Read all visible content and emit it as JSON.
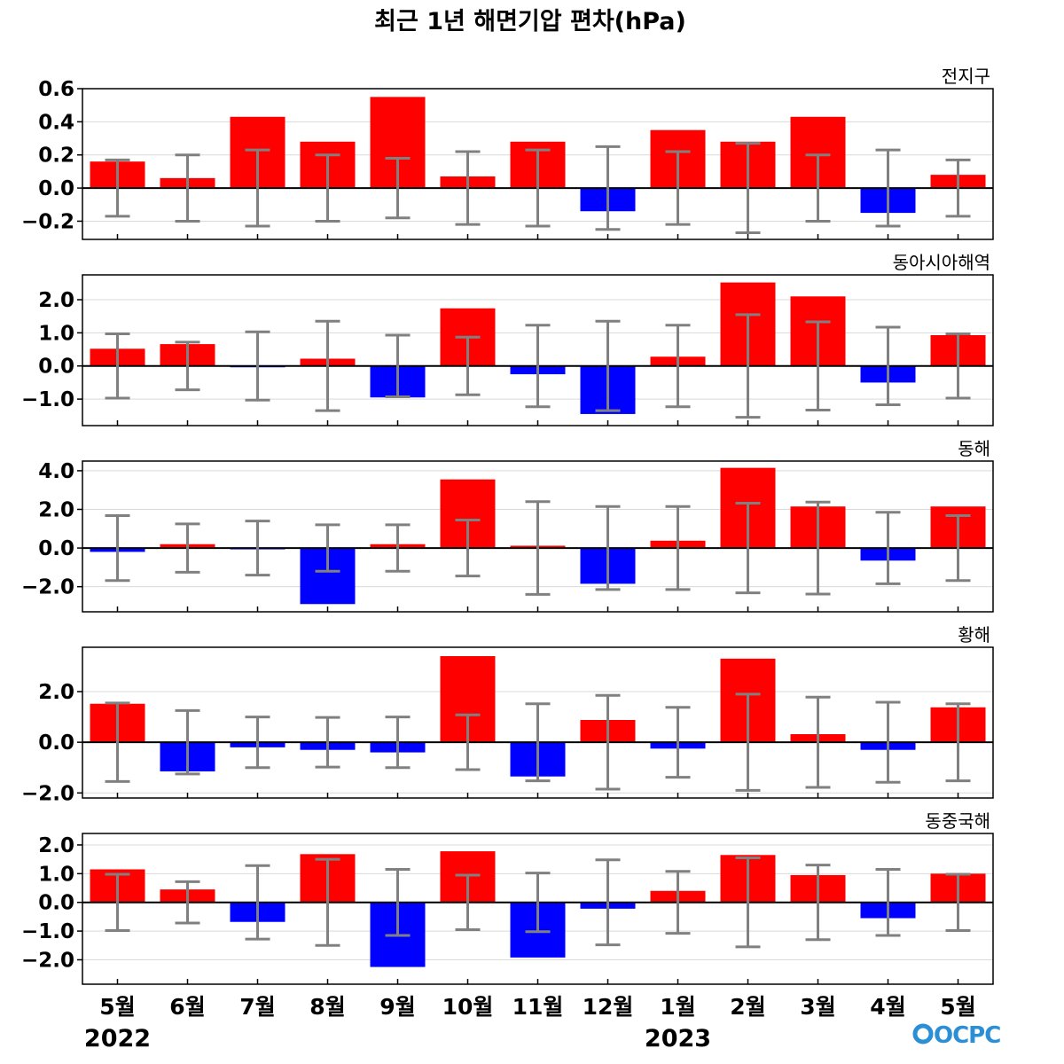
{
  "title": "최근 1년 해면기압 편차(hPa)",
  "logo_text": "OCPC",
  "colors": {
    "positive": "#ff0000",
    "negative": "#0000ff",
    "errorbar": "#808080",
    "grid": "#d9d9d9",
    "zero": "#000000"
  },
  "chart_data": [
    {
      "type": "bar",
      "title": "전지구",
      "categories": [
        "5월",
        "6월",
        "7월",
        "8월",
        "9월",
        "10월",
        "11월",
        "12월",
        "1월",
        "2월",
        "3월",
        "4월",
        "5월"
      ],
      "values": [
        0.16,
        0.06,
        0.43,
        0.28,
        0.55,
        0.07,
        0.28,
        -0.14,
        0.35,
        0.28,
        0.43,
        -0.15,
        0.08
      ],
      "error": [
        0.17,
        0.2,
        0.23,
        0.2,
        0.18,
        0.22,
        0.23,
        0.25,
        0.22,
        0.27,
        0.2,
        0.23,
        0.17
      ],
      "ylim": [
        -0.31,
        0.6
      ],
      "yticks": [
        -0.2,
        0.0,
        0.2,
        0.4,
        0.6
      ],
      "ytick_labels": [
        "−0.2",
        "0.0",
        "0.2",
        "0.4",
        "0.6"
      ]
    },
    {
      "type": "bar",
      "title": "동아시아해역",
      "categories": [
        "5월",
        "6월",
        "7월",
        "8월",
        "9월",
        "10월",
        "11월",
        "12월",
        "1월",
        "2월",
        "3월",
        "4월",
        "5월"
      ],
      "values": [
        0.52,
        0.66,
        -0.03,
        0.22,
        -0.95,
        1.74,
        -0.25,
        -1.45,
        0.28,
        2.52,
        2.1,
        -0.5,
        0.93
      ],
      "error": [
        0.97,
        0.72,
        1.03,
        1.35,
        0.93,
        0.87,
        1.23,
        1.35,
        1.23,
        1.55,
        1.33,
        1.17,
        0.97
      ],
      "ylim": [
        -1.8,
        2.75
      ],
      "yticks": [
        -1.0,
        0.0,
        1.0,
        2.0
      ],
      "ytick_labels": [
        "−1.0",
        "0.0",
        "1.0",
        "2.0"
      ]
    },
    {
      "type": "bar",
      "title": "동해",
      "categories": [
        "5월",
        "6월",
        "7월",
        "8월",
        "9월",
        "10월",
        "11월",
        "12월",
        "1월",
        "2월",
        "3월",
        "4월",
        "5월"
      ],
      "values": [
        -0.2,
        0.2,
        -0.05,
        -2.9,
        0.2,
        3.55,
        0.12,
        -1.85,
        0.38,
        4.15,
        2.15,
        -0.65,
        2.15
      ],
      "error": [
        1.68,
        1.25,
        1.4,
        1.2,
        1.2,
        1.45,
        2.4,
        2.15,
        2.15,
        2.32,
        2.38,
        1.85,
        1.68
      ],
      "ylim": [
        -3.3,
        4.5
      ],
      "yticks": [
        -2.0,
        0.0,
        2.0,
        4.0
      ],
      "ytick_labels": [
        "−2.0",
        "0.0",
        "2.0",
        "4.0"
      ]
    },
    {
      "type": "bar",
      "title": "황해",
      "categories": [
        "5월",
        "6월",
        "7월",
        "8월",
        "9월",
        "10월",
        "11월",
        "12월",
        "1월",
        "2월",
        "3월",
        "4월",
        "5월"
      ],
      "values": [
        1.52,
        -1.15,
        -0.2,
        -0.3,
        -0.4,
        3.4,
        -1.35,
        0.88,
        -0.25,
        3.3,
        0.32,
        -0.3,
        1.38
      ],
      "error": [
        1.55,
        1.25,
        1.0,
        0.98,
        1.0,
        1.08,
        1.52,
        1.85,
        1.38,
        1.9,
        1.78,
        1.58,
        1.52
      ],
      "ylim": [
        -2.2,
        3.75
      ],
      "yticks": [
        -2.0,
        0.0,
        2.0
      ],
      "ytick_labels": [
        "−2.0",
        "0.0",
        "2.0"
      ]
    },
    {
      "type": "bar",
      "title": "동중국해",
      "categories": [
        "5월",
        "6월",
        "7월",
        "8월",
        "9월",
        "10월",
        "11월",
        "12월",
        "1월",
        "2월",
        "3월",
        "4월",
        "5월"
      ],
      "values": [
        1.15,
        0.45,
        -0.68,
        1.68,
        -2.25,
        1.78,
        -1.92,
        -0.22,
        0.4,
        1.65,
        0.95,
        -0.55,
        1.0
      ],
      "error": [
        0.98,
        0.72,
        1.28,
        1.5,
        1.15,
        0.95,
        1.02,
        1.48,
        1.08,
        1.55,
        1.3,
        1.15,
        0.98
      ],
      "ylim": [
        -2.85,
        2.4
      ],
      "yticks": [
        -2.0,
        -1.0,
        0.0,
        1.0,
        2.0
      ],
      "ytick_labels": [
        "−2.0",
        "−1.0",
        "0.0",
        "1.0",
        "2.0"
      ]
    }
  ],
  "x_axis": {
    "labels": [
      "5월",
      "6월",
      "7월",
      "8월",
      "9월",
      "10월",
      "11월",
      "12월",
      "1월",
      "2월",
      "3월",
      "4월",
      "5월"
    ],
    "years": [
      {
        "label": "2022",
        "index": 0
      },
      {
        "label": "2023",
        "index": 8
      }
    ]
  }
}
